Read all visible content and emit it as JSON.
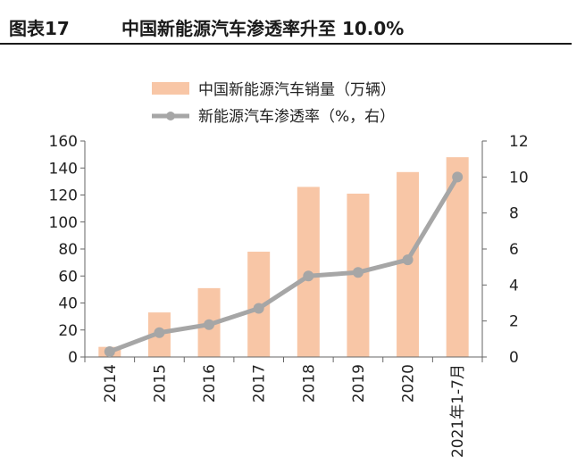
{
  "figure": {
    "label": "图表17",
    "title": "中国新能源汽车渗透率升至 10.0%"
  },
  "chart_data": {
    "type": "bar",
    "categories": [
      "2014",
      "2015",
      "2016",
      "2017",
      "2018",
      "2019",
      "2020",
      "2021年1-7月"
    ],
    "series": [
      {
        "name": "中国新能源汽车销量（万辆）",
        "type": "bar",
        "axis": "left",
        "color": "#f8c6a6",
        "values": [
          7.5,
          33,
          51,
          78,
          126,
          121,
          137,
          148
        ]
      },
      {
        "name": "新能源汽车渗透率（%，右）",
        "type": "line",
        "axis": "right",
        "color": "#a6a6a6",
        "values": [
          0.3,
          1.35,
          1.8,
          2.7,
          4.5,
          4.7,
          5.4,
          10.0
        ]
      }
    ],
    "y_left": {
      "min": 0,
      "max": 160,
      "ticks": [
        "0",
        "20",
        "40",
        "60",
        "80",
        "100",
        "120",
        "140",
        "160"
      ]
    },
    "y_right": {
      "min": 0,
      "max": 12,
      "ticks": [
        "0",
        "2",
        "4",
        "6",
        "8",
        "10",
        "12"
      ]
    },
    "grid": false,
    "legend_position": "top"
  }
}
